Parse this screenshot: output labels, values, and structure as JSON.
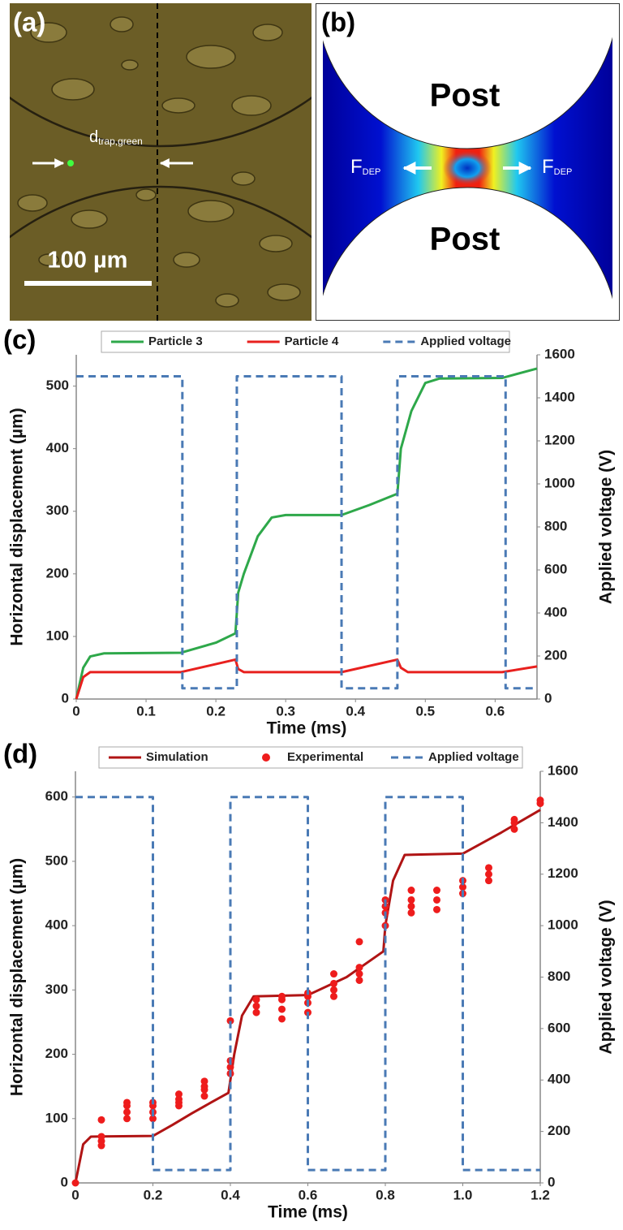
{
  "panels": [
    {
      "label": "(a)",
      "d_symbol": "d",
      "d_subscript": "trap,green",
      "scale_bar": "100 µm"
    },
    {
      "label": "(b)",
      "post_labels": [
        "Post",
        "Post"
      ],
      "force_labels": [
        {
          "symbol": "F",
          "subscript": "DEP"
        },
        {
          "symbol": "F",
          "subscript": "DEP"
        }
      ]
    }
  ],
  "chart_data": [
    {
      "type": "line",
      "panel_label": "(c)",
      "xlabel": "Time (ms)",
      "ylabel": "Horizontal displacement (µm)",
      "y2label": "Applied voltage (V)",
      "legend": "top",
      "xlim": [
        0,
        0.66
      ],
      "xticks": [
        0,
        0.1,
        0.2,
        0.3,
        0.4,
        0.5,
        0.6
      ],
      "ylim": [
        0,
        550
      ],
      "yticks": [
        0,
        100,
        200,
        300,
        400,
        500
      ],
      "y2lim": [
        0,
        1600
      ],
      "y2ticks": [
        0,
        200,
        400,
        600,
        800,
        1000,
        1200,
        1400,
        1600
      ],
      "series": [
        {
          "name": "Particle 3",
          "type": "line",
          "color": "#2ea84a",
          "x": [
            0,
            0.01,
            0.02,
            0.04,
            0.15,
            0.2,
            0.228,
            0.232,
            0.24,
            0.26,
            0.28,
            0.3,
            0.38,
            0.42,
            0.46,
            0.465,
            0.48,
            0.5,
            0.52,
            0.61,
            0.66
          ],
          "values": [
            0,
            50,
            68,
            73,
            74,
            90,
            105,
            170,
            200,
            260,
            290,
            294,
            294,
            310,
            328,
            400,
            460,
            505,
            512,
            513,
            528
          ]
        },
        {
          "name": "Particle 4",
          "type": "line",
          "color": "#e8201e",
          "x": [
            0,
            0.01,
            0.02,
            0.15,
            0.228,
            0.232,
            0.24,
            0.38,
            0.46,
            0.465,
            0.475,
            0.61,
            0.66
          ],
          "values": [
            0,
            35,
            43,
            43,
            63,
            48,
            43,
            43,
            63,
            50,
            43,
            43,
            52
          ]
        },
        {
          "name": "Applied voltage",
          "type": "line",
          "axis": "y2",
          "dash": true,
          "color": "#4a7ab5",
          "x": [
            0,
            0.152,
            0.152,
            0.23,
            0.23,
            0.38,
            0.38,
            0.46,
            0.46,
            0.615,
            0.615,
            0.66
          ],
          "values": [
            1500,
            1500,
            50,
            50,
            1500,
            1500,
            50,
            50,
            1500,
            1500,
            50,
            50
          ]
        }
      ]
    },
    {
      "type": "line",
      "panel_label": "(d)",
      "xlabel": "Time (ms)",
      "ylabel": "Horizontal displacement (µm)",
      "y2label": "Applied voltage (V)",
      "legend": "top",
      "xlim": [
        0,
        1.2
      ],
      "xticks": [
        0,
        0.2,
        0.4,
        0.6,
        0.8,
        {
          "value": 1,
          "label": "1.0"
        },
        1.2
      ],
      "ylim": [
        0,
        640
      ],
      "yticks": [
        0,
        100,
        200,
        300,
        400,
        500,
        600
      ],
      "y2lim": [
        0,
        1600
      ],
      "y2ticks": [
        0,
        200,
        400,
        600,
        800,
        1000,
        1200,
        1400,
        1600
      ],
      "series": [
        {
          "name": "Simulation",
          "type": "line",
          "color": "#b01414",
          "x": [
            0,
            0.02,
            0.04,
            0.2,
            0.25,
            0.3,
            0.35,
            0.395,
            0.41,
            0.43,
            0.46,
            0.6,
            0.7,
            0.795,
            0.8,
            0.82,
            0.85,
            1.0,
            1.1,
            1.2
          ],
          "values": [
            0,
            60,
            72,
            73,
            90,
            108,
            125,
            140,
            200,
            260,
            290,
            292,
            320,
            360,
            400,
            470,
            510,
            512,
            545,
            580
          ]
        },
        {
          "name": "Experimental",
          "type": "scatter",
          "color": "#ee1c1c",
          "x": [
            0,
            0.067,
            0.067,
            0.067,
            0.067,
            0.133,
            0.133,
            0.133,
            0.133,
            0.2,
            0.2,
            0.2,
            0.2,
            0.267,
            0.267,
            0.267,
            0.267,
            0.333,
            0.333,
            0.333,
            0.333,
            0.4,
            0.4,
            0.4,
            0.4,
            0.467,
            0.467,
            0.467,
            0.533,
            0.533,
            0.533,
            0.533,
            0.6,
            0.6,
            0.6,
            0.6,
            0.667,
            0.667,
            0.667,
            0.667,
            0.733,
            0.733,
            0.733,
            0.733,
            0.8,
            0.8,
            0.8,
            0.8,
            0.867,
            0.867,
            0.867,
            0.867,
            0.933,
            0.933,
            0.933,
            1.0,
            1.0,
            1.0,
            1.067,
            1.067,
            1.067,
            1.133,
            1.133,
            1.133,
            1.2,
            1.2
          ],
          "values": [
            0,
            58,
            65,
            72,
            98,
            100,
            110,
            120,
            125,
            100,
            110,
            120,
            125,
            120,
            125,
            130,
            138,
            135,
            145,
            150,
            158,
            170,
            180,
            190,
            252,
            265,
            275,
            285,
            255,
            270,
            285,
            290,
            265,
            280,
            290,
            295,
            290,
            300,
            310,
            325,
            315,
            325,
            335,
            375,
            400,
            420,
            430,
            440,
            420,
            430,
            440,
            455,
            425,
            440,
            455,
            450,
            460,
            470,
            470,
            480,
            490,
            550,
            560,
            565,
            590,
            595
          ]
        },
        {
          "name": "Applied voltage",
          "type": "line",
          "axis": "y2",
          "dash": true,
          "color": "#4a7ab5",
          "x": [
            0,
            0.2,
            0.2,
            0.4,
            0.4,
            0.6,
            0.6,
            0.8,
            0.8,
            1.0,
            1.0,
            1.2
          ],
          "values": [
            1500,
            1500,
            50,
            50,
            1500,
            1500,
            50,
            50,
            1500,
            1500,
            50,
            50
          ]
        }
      ]
    }
  ]
}
